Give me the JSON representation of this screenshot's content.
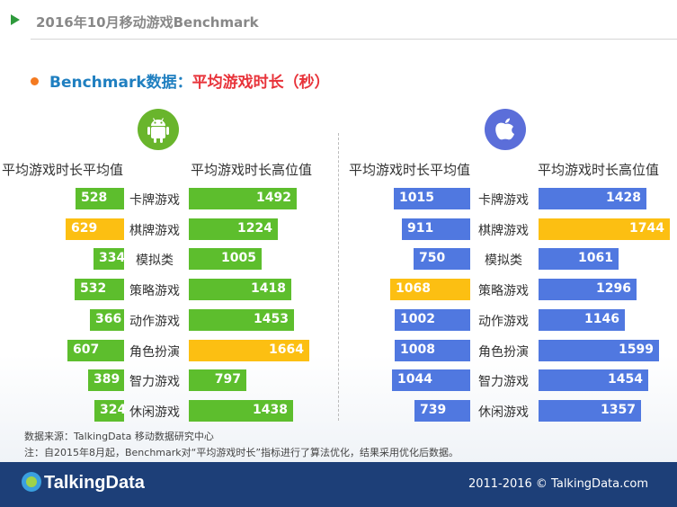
{
  "header": {
    "title": "2016年10月移动游戏Benchmark"
  },
  "section": {
    "title_prefix": "Benchmark数据：",
    "title_highlight": "平均游戏时长（秒）"
  },
  "icons": {
    "android": "android-logo-icon",
    "apple": "apple-logo-icon"
  },
  "colors": {
    "green": "#5dbe2d",
    "blue": "#5078e0",
    "highlight": "#fcbf12"
  },
  "chart_data": [
    {
      "type": "bar",
      "platform": "android",
      "categories": [
        "卡牌游戏",
        "棋牌游戏",
        "模拟类",
        "策略游戏",
        "动作游戏",
        "角色扮演",
        "智力游戏",
        "休闲游戏"
      ],
      "series": [
        {
          "name": "平均游戏时长平均值",
          "values": [
            528,
            629,
            334,
            532,
            366,
            607,
            389,
            324
          ],
          "highlight_index": 1
        },
        {
          "name": "平均游戏时长高位值",
          "values": [
            1492,
            1224,
            1005,
            1418,
            1453,
            1664,
            797,
            1438
          ],
          "highlight_index": 5
        }
      ]
    },
    {
      "type": "bar",
      "platform": "ios",
      "categories": [
        "卡牌游戏",
        "棋牌游戏",
        "模拟类",
        "策略游戏",
        "动作游戏",
        "角色扮演",
        "智力游戏",
        "休闲游戏"
      ],
      "series": [
        {
          "name": "平均游戏时长平均值",
          "values": [
            1015,
            911,
            750,
            1068,
            1002,
            1008,
            1044,
            739
          ],
          "highlight_index": 3
        },
        {
          "name": "平均游戏时长高位值",
          "values": [
            1428,
            1744,
            1061,
            1296,
            1146,
            1599,
            1454,
            1357
          ],
          "highlight_index": 1
        }
      ]
    }
  ],
  "footer": {
    "source": "数据来源：TalkingData 移动数据研究中心",
    "note": "注：自2015年8月起，Benchmark对“平均游戏时长”指标进行了算法优化，结果采用优化后数据。",
    "logo": "TalkingData",
    "copyright": "2011-2016 © TalkingData.com"
  }
}
